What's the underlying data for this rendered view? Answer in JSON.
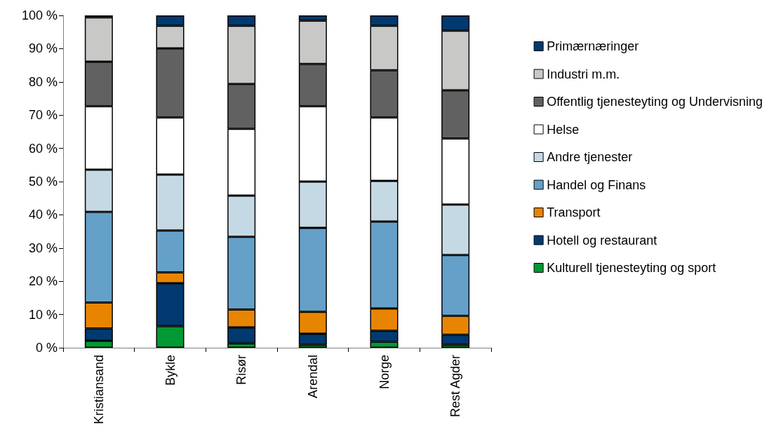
{
  "chart_data": {
    "type": "bar",
    "stacked": true,
    "grid": false,
    "legend": "right",
    "categories": [
      "Kristiansand",
      "Bykle",
      "Risør",
      "Arendal",
      "Norge",
      "Rest Agder"
    ],
    "ylim": [
      0,
      100
    ],
    "yticks": [
      {
        "value": 0,
        "label": "0 %"
      },
      {
        "value": 10,
        "label": "10 %"
      },
      {
        "value": 20,
        "label": "20 %"
      },
      {
        "value": 30,
        "label": "30 %"
      },
      {
        "value": 40,
        "label": "40 %"
      },
      {
        "value": 50,
        "label": "50 %"
      },
      {
        "value": 60,
        "label": "60 %"
      },
      {
        "value": 70,
        "label": "70 %"
      },
      {
        "value": 80,
        "label": "80 %"
      },
      {
        "value": 90,
        "label": "90 %"
      },
      {
        "value": 100,
        "label": "100 %"
      }
    ],
    "series": [
      {
        "name": "Kulturell tjenesteyting og sport",
        "color": "#009933",
        "values": [
          2.1,
          6.5,
          1.3,
          0.9,
          1.8,
          0.9
        ]
      },
      {
        "name": "Hotell og restaurant",
        "color": "#003a70",
        "values": [
          3.7,
          12.9,
          4.8,
          3.3,
          3.3,
          3.0
        ]
      },
      {
        "name": "Transport",
        "color": "#e88500",
        "values": [
          7.8,
          3.3,
          5.4,
          6.6,
          6.7,
          5.7
        ]
      },
      {
        "name": "Handel og Finans",
        "color": "#65a0c9",
        "values": [
          27.3,
          12.6,
          21.9,
          25.3,
          26.2,
          18.3
        ]
      },
      {
        "name": "Andre tjenester",
        "color": "#c5d9e4",
        "values": [
          12.7,
          16.8,
          12.4,
          13.9,
          12.2,
          15.2
        ]
      },
      {
        "name": "Helse",
        "color": "#ffffff",
        "values": [
          19.1,
          17.2,
          20.1,
          22.7,
          19.1,
          19.9
        ]
      },
      {
        "name": "Offentlig tjenesteyting og Undervisning",
        "color": "#616161",
        "values": [
          13.4,
          20.8,
          13.5,
          12.7,
          14.2,
          14.5
        ]
      },
      {
        "name": "Industri m.m.",
        "color": "#c8c8c6",
        "values": [
          13.3,
          6.8,
          17.5,
          13.0,
          13.4,
          17.9
        ]
      },
      {
        "name": "Primærnæringer",
        "color": "#003a70",
        "values": [
          0.6,
          3.1,
          3.1,
          1.6,
          3.1,
          4.6
        ]
      }
    ]
  }
}
